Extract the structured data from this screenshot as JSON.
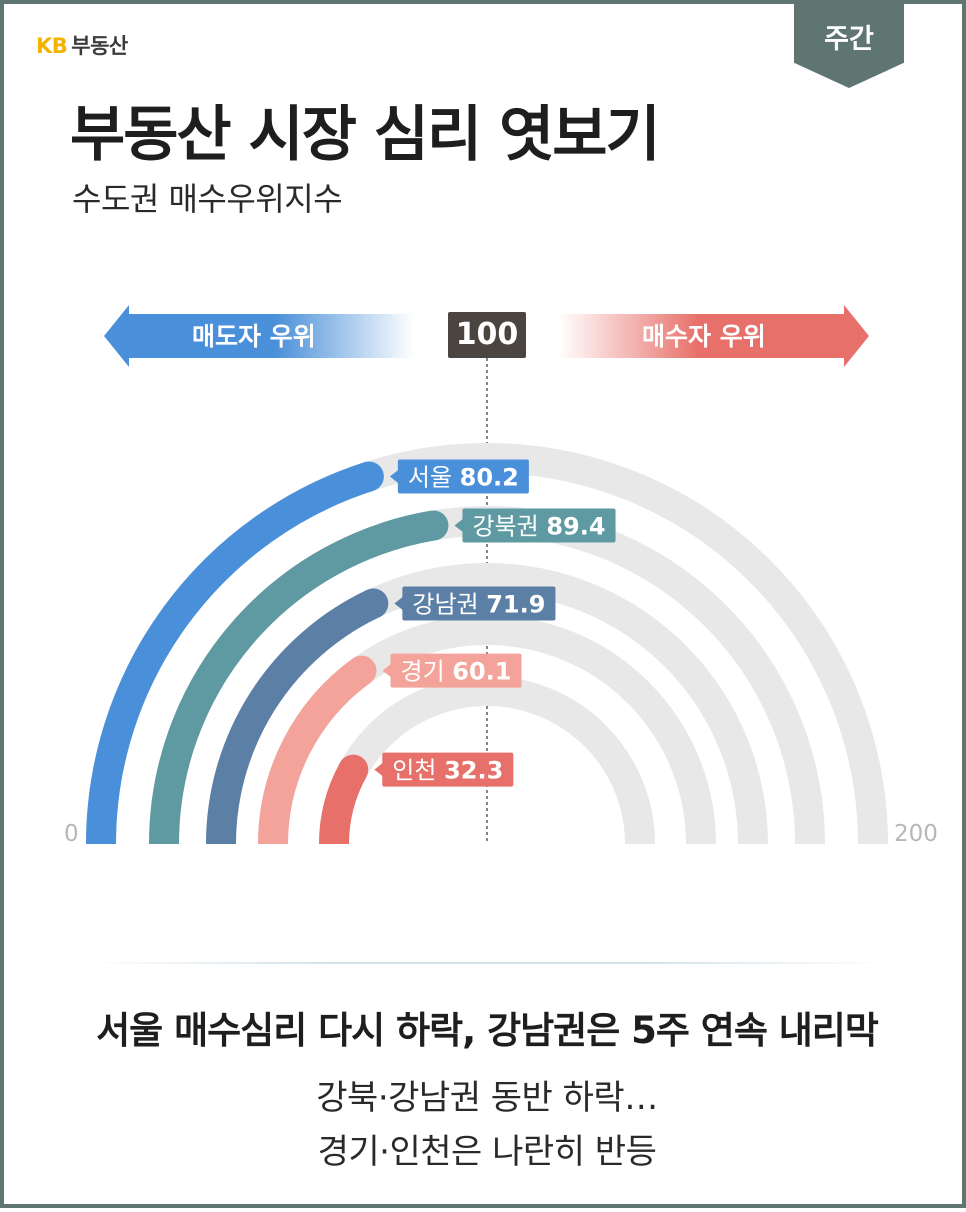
{
  "brand": {
    "kb": "KB",
    "name": "부동산"
  },
  "badge": "주간",
  "title": "부동산 시장 심리 엿보기",
  "subtitle": "수도권 매수우위지수",
  "legend": {
    "sell": "매도자 우위",
    "center": "100",
    "buy": "매수자 우위"
  },
  "headline": "서울 매수심리 다시 하락, 강남권은 5주 연속 내리막",
  "body": {
    "line1": "강북·강남권 동반 하락…",
    "line2": "경기·인천은 나란히 반등"
  },
  "colors": {
    "track": "#e8e8e8",
    "sell_arrow": "#4a8fd9",
    "buy_arrow": "#e8706a",
    "center": "#4a4540",
    "frame": "#5f7572"
  },
  "chart_data": {
    "type": "radial-bar",
    "axis_min": "0",
    "axis_max": "200",
    "range": [
      0,
      200
    ],
    "reference": 100,
    "series": [
      {
        "name": "서울",
        "value": 80.2,
        "value_label": "80.2",
        "color": "#4a8fd9"
      },
      {
        "name": "강북권",
        "value": 89.4,
        "value_label": "89.4",
        "color": "#5f9aa3"
      },
      {
        "name": "강남권",
        "value": 71.9,
        "value_label": "71.9",
        "color": "#5c7fa6"
      },
      {
        "name": "경기",
        "value": 60.1,
        "value_label": "60.1",
        "color": "#f3a39a"
      },
      {
        "name": "인천",
        "value": 32.3,
        "value_label": "32.3",
        "color": "#e8706a"
      }
    ]
  }
}
